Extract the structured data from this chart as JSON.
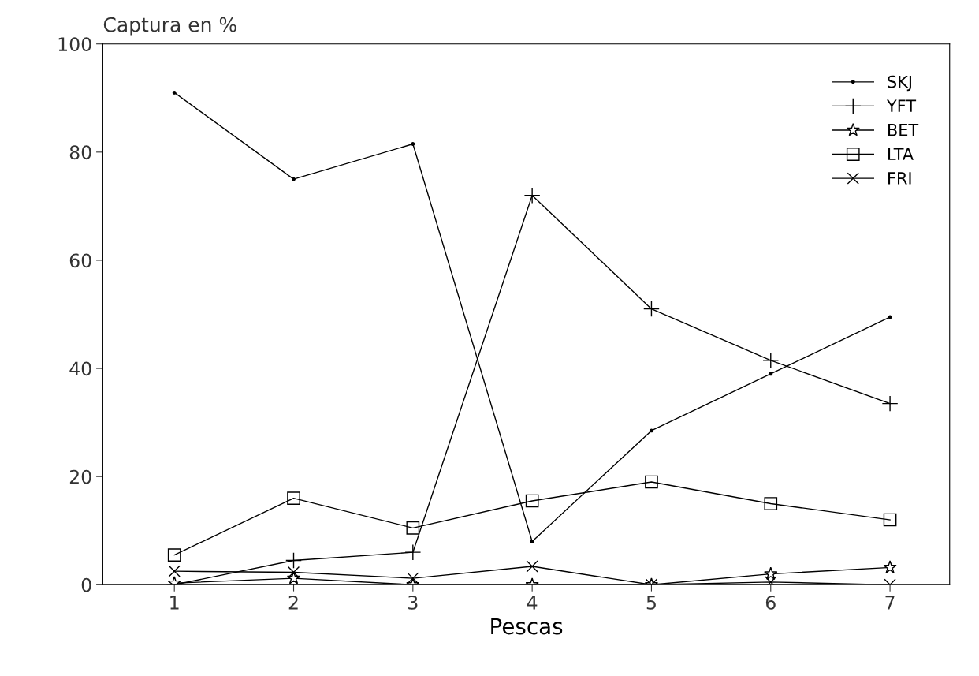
{
  "chart_data": {
    "type": "line",
    "title": "Captura en %",
    "xlabel": "Pescas",
    "x": [
      1,
      2,
      3,
      4,
      5,
      6,
      7
    ],
    "series": [
      {
        "name": "SKJ",
        "color": "#000000",
        "marker": "circle",
        "values": [
          91,
          75,
          81.5,
          8,
          28.5,
          39,
          49.5
        ]
      },
      {
        "name": "YFT",
        "color": "#000000",
        "marker": "plus",
        "values": [
          0,
          4.5,
          6,
          72,
          51,
          41.5,
          33.5
        ]
      },
      {
        "name": "BET",
        "color": "#000000",
        "marker": "star",
        "values": [
          0.3,
          1.2,
          0,
          0,
          0,
          2,
          3.2
        ]
      },
      {
        "name": "LTA",
        "color": "#000000",
        "marker": "square",
        "values": [
          5.5,
          16,
          10.5,
          15.5,
          19,
          15,
          12
        ]
      },
      {
        "name": "FRI",
        "color": "#000000",
        "marker": "cross",
        "values": [
          2.5,
          2.3,
          1.2,
          3.4,
          0,
          0.5,
          0
        ]
      }
    ],
    "xlim": [
      0.4,
      7.5
    ],
    "xticks": [
      1,
      2,
      3,
      4,
      5,
      6,
      7
    ],
    "ylim": [
      0,
      100
    ],
    "yticks": [
      0,
      20,
      40,
      60,
      80,
      100
    ],
    "grid": false,
    "legend": "top right"
  }
}
